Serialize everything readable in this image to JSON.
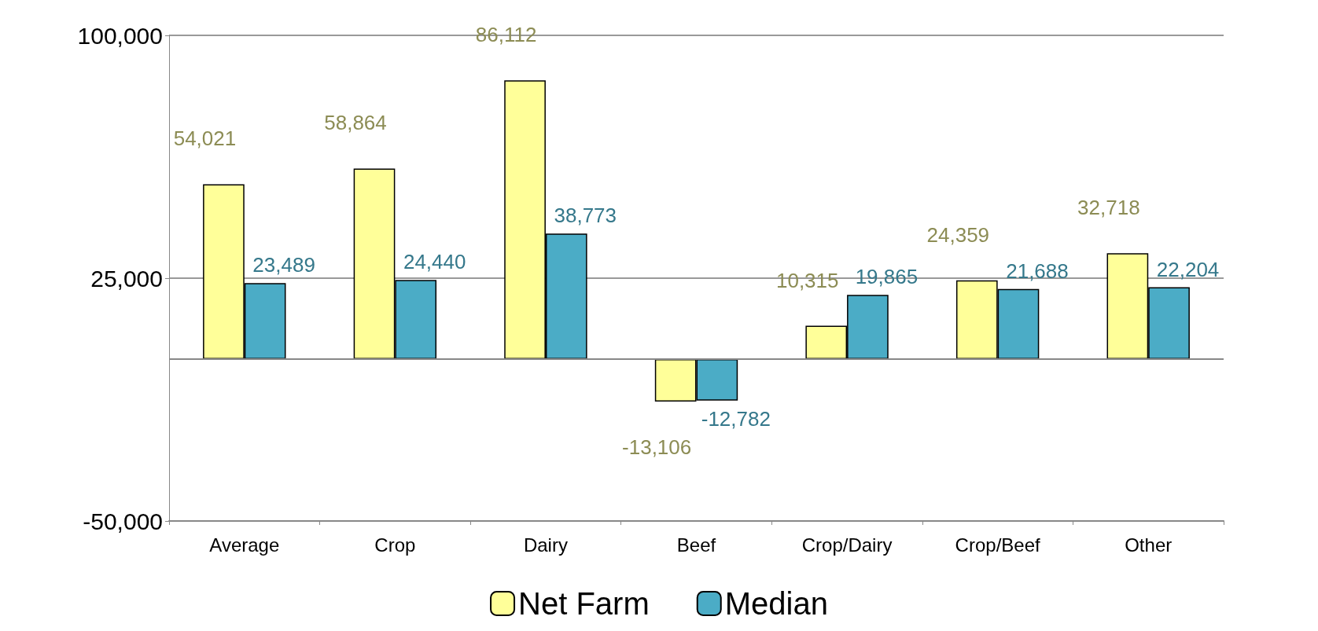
{
  "chart_data": {
    "type": "bar",
    "categories": [
      "Average",
      "Crop",
      "Dairy",
      "Beef",
      "Crop/Dairy",
      "Crop/Beef",
      "Other"
    ],
    "series": [
      {
        "name": "Net Farm",
        "color": "#ffff99",
        "values": [
          54021,
          58864,
          86112,
          -13106,
          10315,
          24359,
          32718
        ],
        "value_labels": [
          "54,021",
          "58,864",
          "86,112",
          "-13,106",
          "10,315",
          "24,359",
          "32,718"
        ]
      },
      {
        "name": "Median",
        "color": "#4bacc6",
        "values": [
          23489,
          24440,
          38773,
          -12782,
          19865,
          21688,
          22204
        ],
        "value_labels": [
          "23,489",
          "24,440",
          "38,773",
          "-12,782",
          "19,865",
          "21,688",
          "22,204"
        ]
      }
    ],
    "ylim": [
      -50000,
      100000
    ],
    "yticks": [
      {
        "value": -50000,
        "label": "-50,000"
      },
      {
        "value": 25000,
        "label": "25,000"
      },
      {
        "value": 100000,
        "label": "100,000"
      }
    ],
    "ref_lines": [
      {
        "axis": "y",
        "value": 0
      }
    ],
    "grid": "y",
    "legend": "bottom"
  }
}
